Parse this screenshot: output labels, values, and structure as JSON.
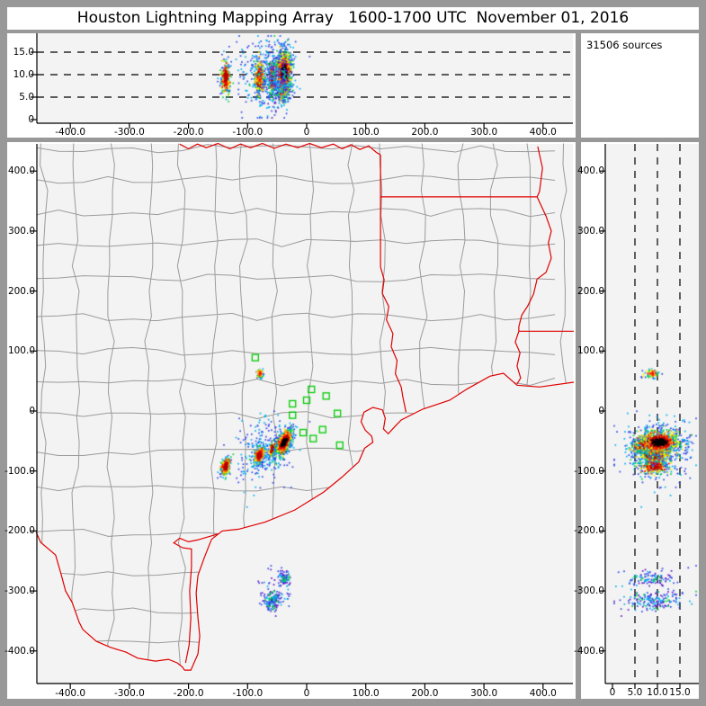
{
  "title": "Houston Lightning Mapping Array   1600-1700 UTC  November 01, 2016",
  "sources_label": "31506 sources",
  "colors": {
    "frame": "#989898",
    "panel_bg": "#ffffff",
    "plot_bg": "#f3f3f3",
    "county_line": "#9b9b9b",
    "state_border": "#e00000",
    "sensor_green": "#00cc00",
    "axis": "#000000",
    "grid_dash": "#000000",
    "offshore_purple": "#6414c8",
    "density_palette": [
      "#3248e8",
      "#00b0f0",
      "#00d23c",
      "#f5f000",
      "#ff9000",
      "#ff1400",
      "#b40000",
      "#000000"
    ]
  },
  "axes": {
    "ew": {
      "values": [
        -400,
        -300,
        -200,
        -100,
        0,
        100,
        200,
        300,
        400
      ],
      "labels": [
        "-400.0",
        "-300.0",
        "-200.0",
        "-100.0",
        "0",
        "100.0",
        "200.0",
        "300.0",
        "400.0"
      ]
    },
    "ns": {
      "values": [
        400,
        300,
        200,
        100,
        0,
        -100,
        -200,
        -300,
        -400
      ],
      "labels": [
        "400.0",
        "300.0",
        "200.0",
        "100.0",
        "0",
        "-100.0",
        "-200.0",
        "-300.0",
        "-400.0"
      ]
    },
    "alt": {
      "values": [
        0,
        5,
        10,
        15
      ],
      "labels": [
        "0",
        "5.0",
        "10.0",
        "15.0"
      ],
      "dashed_levels": [
        5,
        10,
        15
      ]
    }
  },
  "chart_data": {
    "type": "scatter",
    "title": "Houston Lightning Mapping Array 1600-1700 UTC November 01, 2016",
    "total_sources_text": "31506 sources",
    "units": "km",
    "panels": [
      {
        "id": "alt_vs_ew",
        "position": "top",
        "xlim": [
          -456.6,
          450.5
        ],
        "ylim": [
          -0.8,
          19.2
        ],
        "grid": "dashed-horizontal-5-10-15"
      },
      {
        "id": "plan_view",
        "position": "main",
        "xlim": [
          -456.6,
          450.5
        ],
        "ylim": [
          -454.3,
          445.3
        ],
        "grid": "county-and-state-borders"
      },
      {
        "id": "alt_vs_ns",
        "position": "right",
        "xlim": [
          -1.6,
          19.2
        ],
        "ylim": [
          -454.3,
          445.3
        ],
        "grid": "dashed-vertical-5-10-15"
      }
    ],
    "clusters": [
      {
        "name": "storm-halo",
        "x": -72,
        "y": -66,
        "sx": 27,
        "sy": 30,
        "shear": 0.2,
        "alt": 10,
        "salt": 4.4,
        "n": 260,
        "heat": 0.22,
        "seed": 11
      },
      {
        "name": "cell-west",
        "x": -137,
        "y": -92,
        "sx": 5,
        "sy": 10,
        "shear": 0.2,
        "alt": 9.4,
        "salt": 2.4,
        "n": 380,
        "heat": 0.84,
        "seed": 21
      },
      {
        "name": "cell-mid",
        "x": -80,
        "y": -74,
        "sx": 5.5,
        "sy": 9,
        "shear": 0.2,
        "alt": 9.4,
        "salt": 2.5,
        "n": 470,
        "heat": 0.86,
        "seed": 31
      },
      {
        "name": "cell-centre",
        "x": -58,
        "y": -64,
        "sx": 4,
        "sy": 8,
        "shear": 0.25,
        "alt": 9.2,
        "salt": 2.4,
        "n": 260,
        "heat": 0.8,
        "seed": 36
      },
      {
        "name": "cell-east-low",
        "x": -41,
        "y": -58,
        "sx": 5,
        "sy": 8,
        "shear": 0.3,
        "alt": 6.4,
        "salt": 1.4,
        "n": 280,
        "heat": 0.85,
        "seed": 41
      },
      {
        "name": "cell-east-main",
        "x": -38,
        "y": -52,
        "sx": 7,
        "sy": 13,
        "shear": 0.35,
        "alt": 10.3,
        "salt": 3.3,
        "n": 1500,
        "heat": 1,
        "seed": 51
      },
      {
        "name": "cell-north-small",
        "x": -79,
        "y": 62,
        "sx": 3.5,
        "sy": 5,
        "shear": 0,
        "alt": 8.8,
        "salt": 1.2,
        "n": 75,
        "heat": 0.72,
        "seed": 61
      },
      {
        "name": "offshore-halo",
        "x": -50,
        "y": -297,
        "sx": 16,
        "sy": 20,
        "shear": 0,
        "alt": 9,
        "salt": 4.5,
        "n": 45,
        "heat": 0.15,
        "purple": true,
        "seed": 71
      },
      {
        "name": "offshore-north",
        "x": -38,
        "y": -280,
        "sx": 6,
        "sy": 7,
        "shear": 0,
        "alt": 8,
        "salt": 3,
        "n": 95,
        "heat": 0.3,
        "purple": true,
        "seed": 81
      },
      {
        "name": "offshore-south",
        "x": -58,
        "y": -317,
        "sx": 8,
        "sy": 9,
        "shear": 0,
        "alt": 9,
        "salt": 4,
        "n": 155,
        "heat": 0.3,
        "purple": true,
        "seed": 91
      }
    ],
    "sensors": [
      [
        -87,
        89
      ],
      [
        8,
        36
      ],
      [
        33,
        25
      ],
      [
        0,
        18
      ],
      [
        -24,
        12
      ],
      [
        -24,
        -7
      ],
      [
        52,
        -4
      ],
      [
        27,
        -31
      ],
      [
        -6,
        -36
      ],
      [
        11,
        -46
      ],
      [
        56,
        -57
      ]
    ],
    "map": {
      "land_polygon": [
        [
          -457,
          446
        ],
        [
          452,
          446
        ],
        [
          452,
          48
        ],
        [
          394,
          40
        ],
        [
          356,
          43
        ],
        [
          333,
          63
        ],
        [
          310,
          58
        ],
        [
          272,
          37
        ],
        [
          242,
          18
        ],
        [
          196,
          3
        ],
        [
          160,
          -15
        ],
        [
          150,
          -25
        ],
        [
          138,
          -38
        ],
        [
          130,
          -30
        ],
        [
          133,
          -12
        ],
        [
          128,
          2
        ],
        [
          112,
          6
        ],
        [
          97,
          -2
        ],
        [
          92,
          -18
        ],
        [
          99,
          -32
        ],
        [
          110,
          -42
        ],
        [
          112,
          -52
        ],
        [
          98,
          -62
        ],
        [
          88,
          -85
        ],
        [
          60,
          -110
        ],
        [
          29,
          -135
        ],
        [
          -20,
          -165
        ],
        [
          -70,
          -185
        ],
        [
          -115,
          -197
        ],
        [
          -143,
          -200
        ],
        [
          -161,
          -214
        ],
        [
          -173,
          -244
        ],
        [
          -184,
          -274
        ],
        [
          -187,
          -304
        ],
        [
          -184,
          -345
        ],
        [
          -181,
          -375
        ],
        [
          -184,
          -405
        ],
        [
          -196,
          -432
        ],
        [
          -207,
          -432
        ],
        [
          -207,
          -456
        ],
        [
          -457,
          -456
        ]
      ],
      "mexico_polygon": [
        [
          -458,
          -202
        ],
        [
          -450,
          -219
        ],
        [
          -425,
          -240
        ],
        [
          -415,
          -274
        ],
        [
          -408,
          -300
        ],
        [
          -397,
          -319
        ],
        [
          -385,
          -352
        ],
        [
          -379,
          -364
        ],
        [
          -356,
          -384
        ],
        [
          -332,
          -394
        ],
        [
          -306,
          -402
        ],
        [
          -286,
          -412
        ],
        [
          -256,
          -417
        ],
        [
          -234,
          -414
        ],
        [
          -219,
          -420
        ],
        [
          -210,
          -427
        ],
        [
          -207,
          -432
        ],
        [
          -207,
          -456
        ],
        [
          -458,
          -456
        ]
      ],
      "red_lines": {
        "coast": [
          [
            452,
            48
          ],
          [
            394,
            40
          ],
          [
            356,
            43
          ],
          [
            333,
            63
          ],
          [
            310,
            58
          ],
          [
            272,
            37
          ],
          [
            242,
            18
          ],
          [
            196,
            3
          ],
          [
            160,
            -15
          ],
          [
            150,
            -25
          ],
          [
            138,
            -38
          ],
          [
            130,
            -30
          ],
          [
            133,
            -12
          ],
          [
            128,
            2
          ],
          [
            112,
            6
          ],
          [
            97,
            -2
          ],
          [
            92,
            -18
          ],
          [
            99,
            -32
          ],
          [
            110,
            -42
          ],
          [
            112,
            -52
          ],
          [
            98,
            -62
          ],
          [
            88,
            -85
          ],
          [
            60,
            -110
          ],
          [
            29,
            -135
          ],
          [
            -20,
            -165
          ],
          [
            -70,
            -185
          ],
          [
            -115,
            -197
          ],
          [
            -143,
            -200
          ],
          [
            -161,
            -214
          ],
          [
            -173,
            -244
          ],
          [
            -184,
            -274
          ],
          [
            -187,
            -304
          ],
          [
            -184,
            -345
          ],
          [
            -181,
            -375
          ],
          [
            -184,
            -405
          ],
          [
            -196,
            -432
          ],
          [
            -207,
            -432
          ]
        ],
        "lagoon": [
          [
            -150,
            -205
          ],
          [
            -185,
            -215
          ],
          [
            -200,
            -218
          ],
          [
            -215,
            -212
          ],
          [
            -225,
            -220
          ],
          [
            -210,
            -228
          ],
          [
            -195,
            -230
          ],
          [
            -195,
            -260
          ],
          [
            -198,
            -300
          ],
          [
            -196,
            -345
          ],
          [
            -199,
            -390
          ],
          [
            -205,
            -420
          ]
        ],
        "rio_grande": [
          [
            -458,
            -202
          ],
          [
            -450,
            -219
          ],
          [
            -425,
            -240
          ],
          [
            -415,
            -274
          ],
          [
            -408,
            -300
          ],
          [
            -397,
            -319
          ],
          [
            -385,
            -352
          ],
          [
            -379,
            -364
          ],
          [
            -356,
            -384
          ],
          [
            -332,
            -394
          ],
          [
            -306,
            -402
          ],
          [
            -286,
            -412
          ],
          [
            -256,
            -417
          ],
          [
            -234,
            -414
          ],
          [
            -219,
            -420
          ],
          [
            -210,
            -427
          ],
          [
            -207,
            -432
          ]
        ],
        "red_river": [
          [
            -215,
            445
          ],
          [
            -200,
            437
          ],
          [
            -185,
            445
          ],
          [
            -170,
            439
          ],
          [
            -150,
            446
          ],
          [
            -130,
            437
          ],
          [
            -112,
            445
          ],
          [
            -95,
            439
          ],
          [
            -75,
            446
          ],
          [
            -55,
            438
          ],
          [
            -35,
            445
          ],
          [
            -15,
            439
          ],
          [
            5,
            446
          ],
          [
            25,
            439
          ],
          [
            45,
            445
          ],
          [
            60,
            437
          ],
          [
            75,
            444
          ],
          [
            90,
            436
          ],
          [
            105,
            442
          ],
          [
            118,
            431
          ],
          [
            125,
            427
          ]
        ],
        "tx_corner_vertical": [
          [
            125,
            427
          ],
          [
            125,
            240
          ]
        ],
        "ok_ar_horizontal": [
          [
            125,
            357
          ],
          [
            390,
            357
          ]
        ],
        "ar_la_river": [
          [
            391,
            441
          ],
          [
            399,
            405
          ],
          [
            394,
            366
          ],
          [
            390,
            357
          ],
          [
            405,
            325
          ],
          [
            414,
            300
          ],
          [
            409,
            280
          ],
          [
            414,
            255
          ],
          [
            405,
            231
          ],
          [
            390,
            220
          ],
          [
            384,
            195
          ],
          [
            374,
            175
          ],
          [
            364,
            160
          ],
          [
            359,
            141
          ],
          [
            359,
            133
          ]
        ],
        "la_horizontal": [
          [
            359,
            133
          ],
          [
            452,
            133
          ]
        ],
        "la_south_river": [
          [
            359,
            133
          ],
          [
            353,
            115
          ],
          [
            361,
            97
          ],
          [
            356,
            75
          ],
          [
            362,
            55
          ],
          [
            356,
            45
          ]
        ],
        "sabine": [
          [
            125,
            240
          ],
          [
            131,
            219
          ],
          [
            128,
            196
          ],
          [
            139,
            174
          ],
          [
            135,
            152
          ],
          [
            146,
            129
          ],
          [
            143,
            107
          ],
          [
            153,
            84
          ],
          [
            150,
            62
          ],
          [
            160,
            40
          ],
          [
            163,
            22
          ],
          [
            166,
            8
          ],
          [
            168,
            -2
          ]
        ]
      }
    }
  }
}
